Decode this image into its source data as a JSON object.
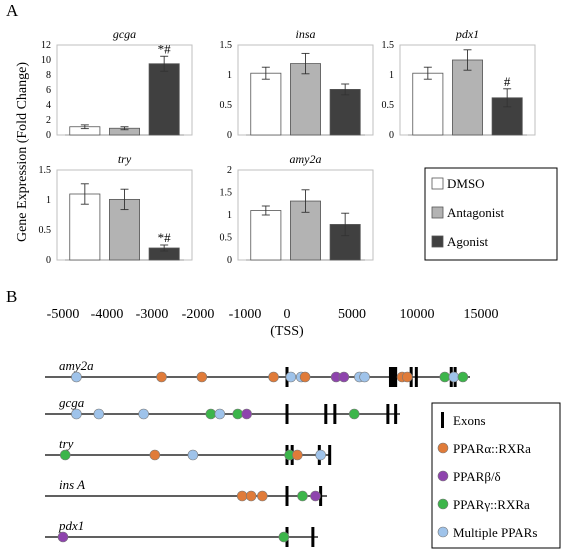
{
  "panel_a_label": "A",
  "panel_b_label": "B",
  "ylabel": "Gene Expression (Fold Change)",
  "legend": [
    {
      "name": "DMSO",
      "color": "#ffffff"
    },
    {
      "name": "Antagonist",
      "color": "#b3b3b3"
    },
    {
      "name": "Agonist",
      "color": "#404040"
    }
  ],
  "chart_data": [
    {
      "type": "bar",
      "title": "gcga",
      "categories": [
        "DMSO",
        "Antagonist",
        "Agonist"
      ],
      "values": [
        1.1,
        0.9,
        9.5
      ],
      "errors": [
        0.25,
        0.2,
        1.0
      ],
      "ylim": [
        0,
        12
      ],
      "yticks": [
        0,
        2,
        4,
        6,
        8,
        10,
        12
      ],
      "tick_labels": [
        "0",
        "2",
        "4",
        "6",
        "8",
        "10",
        "12"
      ],
      "annotations": [
        {
          "category": "Agonist",
          "text": "*#"
        }
      ]
    },
    {
      "type": "bar",
      "title": "insa",
      "categories": [
        "DMSO",
        "Antagonist",
        "Agonist"
      ],
      "values": [
        1.03,
        1.19,
        0.76
      ],
      "errors": [
        0.1,
        0.17,
        0.09
      ],
      "ylim": [
        0,
        1.5
      ],
      "yticks": [
        0,
        0.5,
        1,
        1.5
      ],
      "tick_labels": [
        "0",
        "0.5",
        "1",
        "1.5"
      ],
      "annotations": []
    },
    {
      "type": "bar",
      "title": "pdx1",
      "categories": [
        "DMSO",
        "Antagonist",
        "Agonist"
      ],
      "values": [
        1.03,
        1.25,
        0.62
      ],
      "errors": [
        0.1,
        0.17,
        0.15
      ],
      "ylim": [
        0,
        1.5
      ],
      "yticks": [
        0,
        0.5,
        1,
        1.5
      ],
      "tick_labels": [
        "0",
        "0.5",
        "1",
        "1.5"
      ],
      "annotations": [
        {
          "category": "Agonist",
          "text": "#"
        }
      ]
    },
    {
      "type": "bar",
      "title": "try",
      "categories": [
        "DMSO",
        "Antagonist",
        "Agonist"
      ],
      "values": [
        1.1,
        1.01,
        0.2
      ],
      "errors": [
        0.17,
        0.17,
        0.05
      ],
      "ylim": [
        0,
        1.5
      ],
      "yticks": [
        0,
        0.5,
        1,
        1.5
      ],
      "tick_labels": [
        "0",
        "0.5",
        "1",
        "1.5"
      ],
      "annotations": [
        {
          "category": "Agonist",
          "text": "*#"
        }
      ]
    },
    {
      "type": "bar",
      "title": "amy2a",
      "categories": [
        "DMSO",
        "Antagonist",
        "Agonist"
      ],
      "values": [
        1.1,
        1.31,
        0.79
      ],
      "errors": [
        0.1,
        0.25,
        0.25
      ],
      "ylim": [
        0,
        2
      ],
      "yticks": [
        0,
        0.5,
        1,
        1.5,
        2
      ],
      "tick_labels": [
        "0",
        "0.5",
        "1",
        "1.5",
        "2"
      ],
      "annotations": []
    }
  ],
  "genome_map": {
    "axis_ticks": [
      "-5000",
      "-4000",
      "-3000",
      "-2000",
      "-1000",
      "0",
      "5000",
      "10000",
      "15000"
    ],
    "axis_label": "(TSS)",
    "genes": [
      {
        "name": "amy2a",
        "exons": [
          0,
          8.0,
          8.2,
          8.4,
          9.6,
          10.0,
          12.7,
          13.0
        ],
        "sites": [
          {
            "pos": -4700,
            "type": "multi"
          },
          {
            "pos": -2800,
            "type": "alpha"
          },
          {
            "pos": -1900,
            "type": "alpha"
          },
          {
            "pos": -300,
            "type": "alpha"
          },
          {
            "pos": 0.3,
            "type": "multi"
          },
          {
            "pos": 1.1,
            "type": "multi"
          },
          {
            "pos": 1.4,
            "type": "alpha"
          },
          {
            "pos": 3.8,
            "type": "delta"
          },
          {
            "pos": 4.4,
            "type": "delta"
          },
          {
            "pos": 5.6,
            "type": "multi"
          },
          {
            "pos": 6.0,
            "type": "multi"
          },
          {
            "pos": 8.9,
            "type": "alpha"
          },
          {
            "pos": 9.3,
            "type": "alpha"
          },
          {
            "pos": 12.2,
            "type": "gamma"
          },
          {
            "pos": 12.9,
            "type": "multi"
          },
          {
            "pos": 13.6,
            "type": "gamma"
          }
        ]
      },
      {
        "name": "gcga",
        "exons": [
          0,
          3.0,
          3.7,
          7.8,
          8.4
        ],
        "sites": [
          {
            "pos": -4700,
            "type": "multi"
          },
          {
            "pos": -4200,
            "type": "multi"
          },
          {
            "pos": -3200,
            "type": "multi"
          },
          {
            "pos": -1700,
            "type": "gamma"
          },
          {
            "pos": -1500,
            "type": "multi"
          },
          {
            "pos": -1100,
            "type": "gamma"
          },
          {
            "pos": -900,
            "type": "delta"
          },
          {
            "pos": 5.2,
            "type": "gamma"
          }
        ]
      },
      {
        "name": "try",
        "exons": [
          0,
          0.4,
          2.5,
          3.3
        ],
        "sites": [
          {
            "pos": -4950,
            "type": "gamma"
          },
          {
            "pos": -2950,
            "type": "alpha"
          },
          {
            "pos": -2100,
            "type": "multi"
          },
          {
            "pos": 0.2,
            "type": "gamma"
          },
          {
            "pos": 0.8,
            "type": "alpha"
          },
          {
            "pos": 2.6,
            "type": "multi"
          }
        ]
      },
      {
        "name": "ins A",
        "exons": [
          0,
          2.6
        ],
        "sites": [
          {
            "pos": -1000,
            "type": "alpha"
          },
          {
            "pos": -800,
            "type": "alpha"
          },
          {
            "pos": -550,
            "type": "alpha"
          },
          {
            "pos": 1.2,
            "type": "gamma"
          },
          {
            "pos": 2.2,
            "type": "delta"
          }
        ]
      },
      {
        "name": "pdx1",
        "exons": [
          0,
          2.0
        ],
        "sites": [
          {
            "pos": -5000,
            "type": "delta"
          },
          {
            "pos": -70,
            "type": "gamma"
          }
        ]
      }
    ],
    "legend": [
      {
        "label": "Exons",
        "type": "exon"
      },
      {
        "label": "PPARα::RXRa",
        "type": "alpha",
        "color": "#e07b39"
      },
      {
        "label": "PPARβ/δ",
        "type": "delta",
        "color": "#8e44ad"
      },
      {
        "label": "PPARγ::RXRa",
        "type": "gamma",
        "color": "#3cb54a"
      },
      {
        "label": "Multiple PPARs",
        "type": "multi",
        "color": "#9fc3ea"
      }
    ]
  }
}
